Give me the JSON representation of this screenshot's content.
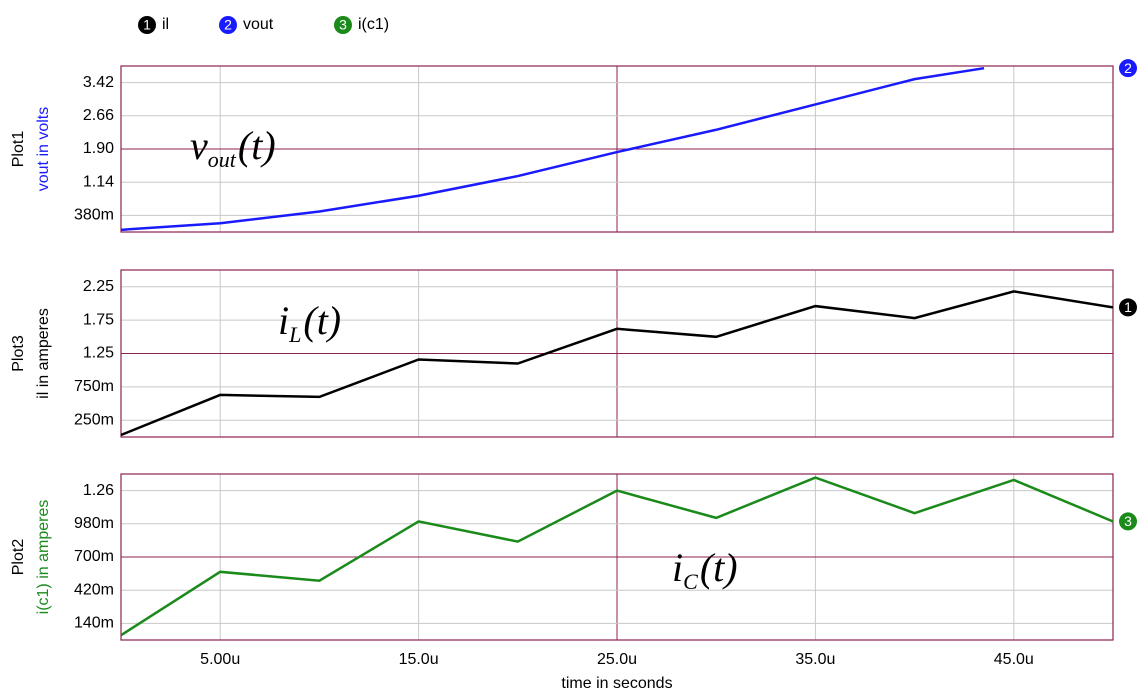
{
  "chart_data": [
    {
      "type": "line",
      "plot_name": "Plot1",
      "ylabel": "vout in volts",
      "label_color": "#1a1aff",
      "xlim": [
        0,
        5e-05
      ],
      "ylim": [
        0,
        3.8
      ],
      "yticks": [
        {
          "value": 0.38,
          "label": "380m"
        },
        1.14,
        {
          "value": 1.9,
          "label": "1.90"
        },
        2.66,
        3.42
      ],
      "series": [
        {
          "name": "vout",
          "trace": 2,
          "color": "#1a1aff",
          "x": [
            0,
            5e-06,
            1e-05,
            1.5e-05,
            2e-05,
            2.5e-05,
            3e-05,
            3.5e-05,
            4e-05,
            4.35e-05
          ],
          "values": [
            0.05,
            0.2,
            0.47,
            0.83,
            1.28,
            1.83,
            2.34,
            2.92,
            3.5,
            3.75
          ]
        }
      ],
      "annotation": {
        "main": "v",
        "sub": "out",
        "arg": "(t)"
      }
    },
    {
      "type": "line",
      "plot_name": "Plot3",
      "ylabel": "il in amperes",
      "label_color": "#000000",
      "xlim": [
        0,
        5e-05
      ],
      "ylim": [
        0,
        2.5
      ],
      "yticks": [
        {
          "value": 0.25,
          "label": "250m"
        },
        {
          "value": 0.75,
          "label": "750m"
        },
        1.25,
        1.75,
        2.25
      ],
      "series": [
        {
          "name": "il",
          "trace": 1,
          "color": "#000000",
          "x": [
            0,
            5e-06,
            1e-05,
            1.5e-05,
            2e-05,
            2.5e-05,
            3e-05,
            3.5e-05,
            4e-05,
            4.5e-05,
            5e-05
          ],
          "values": [
            0.03,
            0.63,
            0.6,
            1.16,
            1.1,
            1.62,
            1.5,
            1.96,
            1.78,
            2.18,
            1.94
          ]
        }
      ],
      "annotation": {
        "main": "i",
        "sub": "L",
        "arg": "(t)"
      }
    },
    {
      "type": "line",
      "plot_name": "Plot2",
      "ylabel": "i(c1) in amperes",
      "label_color": "#1a8a1a",
      "xlim": [
        0,
        5e-05
      ],
      "ylim": [
        0,
        1.4
      ],
      "yticks": [
        {
          "value": 0.14,
          "label": "140m"
        },
        {
          "value": 0.42,
          "label": "420m"
        },
        {
          "value": 0.7,
          "label": "700m"
        },
        {
          "value": 0.98,
          "label": "980m"
        },
        1.26
      ],
      "xticks": [
        {
          "value": 5e-06,
          "label": "5.00u"
        },
        {
          "value": 1.5e-05,
          "label": "15.0u"
        },
        {
          "value": 2.5e-05,
          "label": "25.0u"
        },
        {
          "value": 3.5e-05,
          "label": "35.0u"
        },
        {
          "value": 4.5e-05,
          "label": "45.0u"
        }
      ],
      "xlabel": "time in seconds",
      "series": [
        {
          "name": "i(c1)",
          "trace": 3,
          "color": "#1a8a1a",
          "x": [
            0,
            5e-06,
            1e-05,
            1.5e-05,
            2e-05,
            2.5e-05,
            3e-05,
            3.5e-05,
            4e-05,
            4.5e-05,
            5e-05
          ],
          "values": [
            0.04,
            0.575,
            0.5,
            1.0,
            0.83,
            1.26,
            1.03,
            1.37,
            1.07,
            1.35,
            1.0
          ]
        }
      ],
      "annotation": {
        "main": "i",
        "sub": "C",
        "arg": "(t)"
      }
    }
  ]
}
